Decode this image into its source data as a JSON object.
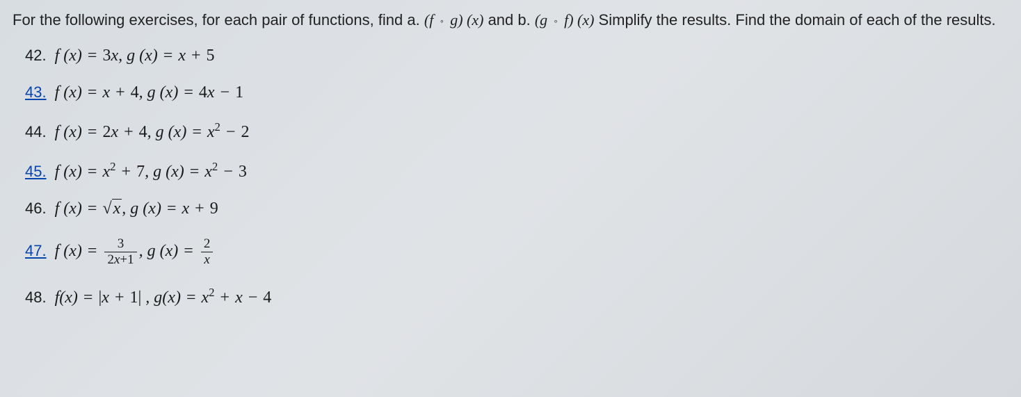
{
  "instructions": {
    "part1": "For the following exercises, for each pair of functions, find a. ",
    "composite_a": "(f ∘ g)(x)",
    "part2": " and b. ",
    "composite_b": "(g ∘ f)(x)",
    "part3": " Simplify the results. Find the domain of each of the results."
  },
  "problems": [
    {
      "number": "42.",
      "linked": false,
      "f": "f (x) = 3x",
      "g": "g (x) = x + 5"
    },
    {
      "number": "43.",
      "linked": true,
      "f": "f (x) = x + 4",
      "g": "g (x) = 4x − 1"
    },
    {
      "number": "44.",
      "linked": false,
      "f": "f (x) = 2x + 4",
      "g_pre": "g (x) = x",
      "g_exp": "2",
      "g_post": " − 2"
    },
    {
      "number": "45.",
      "linked": true,
      "f_pre": "f (x) = x",
      "f_exp": "2",
      "f_post": " + 7",
      "g_pre": "g (x) = x",
      "g_exp": "2",
      "g_post": " − 3"
    },
    {
      "number": "46.",
      "linked": false,
      "f_sqrt": true,
      "f_label": "f (x) = ",
      "sqrt_arg": "x",
      "g": "g (x) = x + 9"
    },
    {
      "number": "47.",
      "linked": true,
      "f_frac": true,
      "f_label": "f (x) = ",
      "f_num": "3",
      "f_den": "2x+1",
      "g_frac": true,
      "g_label": "g (x) = ",
      "g_num": "2",
      "g_den": "x"
    },
    {
      "number": "48.",
      "linked": false,
      "f_abs": true,
      "f_label": "f(x) = ",
      "abs_content": "|x + 1|",
      "g_pre": "g(x) = x",
      "g_exp": "2",
      "g_post": " + x − 4"
    }
  ],
  "styling": {
    "background_gradient": [
      "#d8dde2",
      "#e0e3e6",
      "#d5d9dd"
    ],
    "text_color": "#1a1a1a",
    "link_color": "#0645ad",
    "instruction_fontsize": 22,
    "problem_fontsize": 24,
    "instruction_font": "Arial, sans-serif",
    "math_font": "Times New Roman, serif",
    "problem_spacing": 26,
    "left_indent": 18
  }
}
